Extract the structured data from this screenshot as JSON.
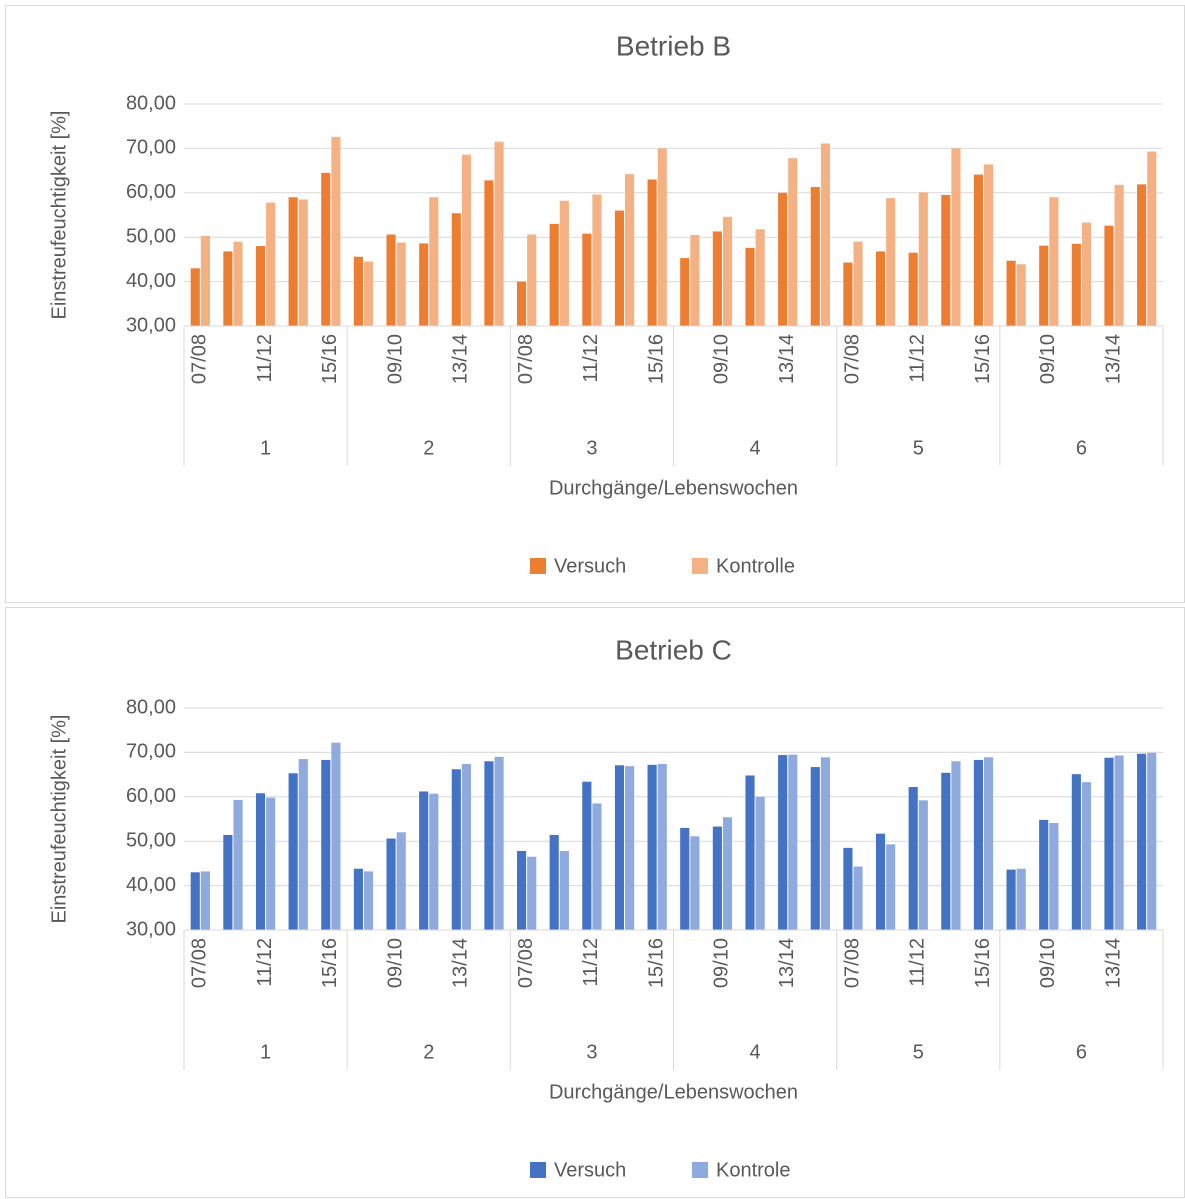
{
  "chart_data": [
    {
      "type": "bar",
      "title": "Betrieb B",
      "y_label": "Einstreufeuchtigkeit [%]",
      "x_label": "Durchgänge/Lebenswochen",
      "groups": [
        "1",
        "2",
        "3",
        "4",
        "5",
        "6"
      ],
      "categories": [
        "07/08",
        null,
        "11/12",
        null,
        "15/16",
        null,
        "09/10",
        null,
        "13/14",
        null,
        "07/08",
        null,
        "11/12",
        null,
        "15/16",
        null,
        "09/10",
        null,
        "13/14",
        null,
        "07/08",
        null,
        "11/12",
        null,
        "15/16",
        null,
        "09/10",
        null,
        "13/14",
        null
      ],
      "series": [
        {
          "name": "Versuch",
          "color": "#ed7d31",
          "values": [
            43.0,
            46.8,
            48.0,
            59.0,
            64.5,
            45.6,
            50.6,
            48.6,
            55.4,
            62.8,
            40.0,
            53.0,
            50.8,
            56.0,
            63.0,
            45.3,
            51.3,
            47.6,
            60.0,
            61.3,
            44.3,
            46.8,
            46.5,
            59.5,
            64.1,
            44.7,
            48.1,
            48.5,
            52.6,
            61.9
          ]
        },
        {
          "name": "Kontrolle",
          "color": "#f4b183",
          "values": [
            50.3,
            49.0,
            57.8,
            58.5,
            72.6,
            44.5,
            48.8,
            59.0,
            68.6,
            71.5,
            50.6,
            58.2,
            59.6,
            64.2,
            70.0,
            50.5,
            54.6,
            51.8,
            67.8,
            71.1,
            49.0,
            58.8,
            60.1,
            70.0,
            66.4,
            43.9,
            59.0,
            53.3,
            61.8,
            69.3
          ]
        }
      ],
      "ylim": [
        30,
        80
      ],
      "yticks": [
        {
          "value": 30,
          "label": "30,00"
        },
        {
          "value": 40,
          "label": "40,00"
        },
        {
          "value": 50,
          "label": "50,00"
        },
        {
          "value": 60,
          "label": "60,00"
        },
        {
          "value": 70,
          "label": "70,00"
        },
        {
          "value": 80,
          "label": "80,00"
        }
      ],
      "grid": true,
      "legend": "bottom"
    },
    {
      "type": "bar",
      "title": "Betrieb C",
      "y_label": "Einstreufeuchtigkeit [%]",
      "x_label": "Durchgänge/Lebenswochen",
      "groups": [
        "1",
        "2",
        "3",
        "4",
        "5",
        "6"
      ],
      "categories": [
        "07/08",
        null,
        "11/12",
        null,
        "15/16",
        null,
        "09/10",
        null,
        "13/14",
        null,
        "07/08",
        null,
        "11/12",
        null,
        "15/16",
        null,
        "09/10",
        null,
        "13/14",
        null,
        "07/08",
        null,
        "11/12",
        null,
        "15/16",
        null,
        "09/10",
        null,
        "13/14",
        null
      ],
      "series": [
        {
          "name": "Versuch",
          "color": "#4472c4",
          "values": [
            43.0,
            51.4,
            60.8,
            65.3,
            68.3,
            43.8,
            50.6,
            61.2,
            66.2,
            68.0,
            47.8,
            51.4,
            63.4,
            67.1,
            67.2,
            53.0,
            53.3,
            64.8,
            69.4,
            66.7,
            48.5,
            51.7,
            62.2,
            65.4,
            68.3,
            43.6,
            54.8,
            65.1,
            68.8,
            69.7
          ]
        },
        {
          "name": "Kontrole",
          "color": "#8faadc",
          "values": [
            43.2,
            59.3,
            59.8,
            68.5,
            72.2,
            43.2,
            52.0,
            60.7,
            67.4,
            69.0,
            46.5,
            47.8,
            58.5,
            66.9,
            67.4,
            51.1,
            55.4,
            60.0,
            69.5,
            68.9,
            44.3,
            49.3,
            59.2,
            68.0,
            68.9,
            43.8,
            54.1,
            63.3,
            69.3,
            69.9
          ]
        }
      ],
      "ylim": [
        30,
        80
      ],
      "yticks": [
        {
          "value": 30,
          "label": "30,00"
        },
        {
          "value": 40,
          "label": "40,00"
        },
        {
          "value": 50,
          "label": "50,00"
        },
        {
          "value": 60,
          "label": "60,00"
        },
        {
          "value": 70,
          "label": "70,00"
        },
        {
          "value": 80,
          "label": "80,00"
        }
      ],
      "grid": true,
      "legend": "bottom"
    }
  ]
}
